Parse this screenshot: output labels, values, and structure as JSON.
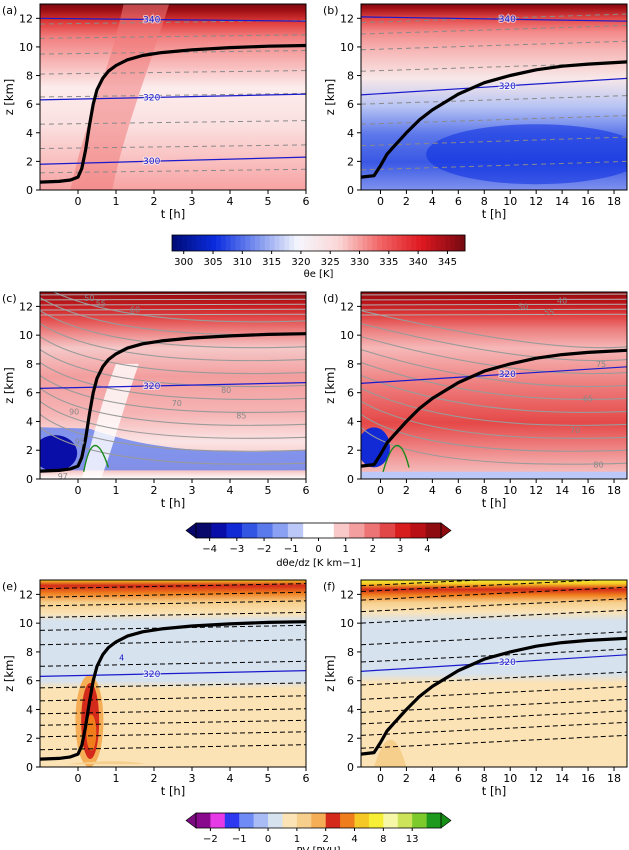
{
  "figure": {
    "rows": [
      {
        "colorbar": {
          "type": "continuous",
          "label": "θe [K]",
          "ticks": [
            300,
            305,
            310,
            315,
            320,
            325,
            330,
            335,
            340,
            345
          ],
          "range": [
            298,
            348
          ],
          "colors": [
            "#000c7a",
            "#0b2de0",
            "#7c92ee",
            "#f5f7fd",
            "#fbd6d6",
            "#f16565",
            "#df1820",
            "#7a0a12"
          ]
        }
      },
      {
        "colorbar": {
          "type": "discrete",
          "label": "dθe/dz [K km−1]",
          "ticks": [
            -4,
            -3,
            -2,
            -1,
            0,
            1,
            2,
            3,
            4
          ],
          "range": [
            -4.5,
            4.5
          ],
          "extend": "both",
          "bins": [
            "#08086b",
            "#0a0ea8",
            "#1229d6",
            "#3355e4",
            "#5a79eb",
            "#8aa0f2",
            "#bcc8f7",
            "#ffffff",
            "#ffffff",
            "#f9c9c9",
            "#f39f9f",
            "#ec7474",
            "#e24747",
            "#d81d1d",
            "#b91015",
            "#8e0b10"
          ]
        }
      },
      {
        "colorbar": {
          "type": "categorical",
          "label": "PV [PVU]",
          "ticks": [
            "−2",
            "−1",
            "0",
            "1",
            "2",
            "4",
            "8",
            "13"
          ],
          "extend": "both",
          "bins": [
            "#8a0a8e",
            "#e53ae5",
            "#2e38f0",
            "#6f8bf5",
            "#a9bcf5",
            "#d6e2ee",
            "#fbe3b6",
            "#f6cf8c",
            "#f5ae55",
            "#d42a1b",
            "#f07d1b",
            "#f5c825",
            "#f7ef36",
            "#f7f7a8",
            "#cde35a",
            "#7dca2d",
            "#1f9a1c"
          ],
          "extend_colors": [
            "#7b0a80",
            "#168f16"
          ]
        }
      }
    ],
    "panels": [
      {
        "label": "(a)",
        "row": 0,
        "col": 0,
        "field": "theta_e"
      },
      {
        "label": "(b)",
        "row": 0,
        "col": 1,
        "field": "theta_e"
      },
      {
        "label": "(c)",
        "row": 1,
        "col": 0,
        "field": "dthetae_dz"
      },
      {
        "label": "(d)",
        "row": 1,
        "col": 1,
        "field": "dthetae_dz"
      },
      {
        "label": "(e)",
        "row": 2,
        "col": 0,
        "field": "pv"
      },
      {
        "label": "(f)",
        "row": 2,
        "col": 1,
        "field": "pv"
      }
    ]
  },
  "chart_data": [
    {
      "type": "heatmap",
      "panel": "(a)",
      "xlabel": "t [h]",
      "ylabel": "z [km]",
      "xlim": [
        -1,
        6
      ],
      "ylim": [
        0,
        13
      ],
      "xticks": [
        0,
        1,
        2,
        3,
        4,
        5,
        6
      ],
      "yticks": [
        0,
        2,
        4,
        6,
        8,
        10,
        12
      ],
      "colorbar": "θe [K]",
      "trajectory": {
        "t": [
          -1,
          -0.5,
          -0.2,
          0,
          0.1,
          0.2,
          0.3,
          0.4,
          0.5,
          0.65,
          0.8,
          1,
          1.3,
          1.7,
          2.2,
          3,
          4,
          5,
          6
        ],
        "z": [
          0.55,
          0.6,
          0.7,
          0.9,
          1.5,
          2.8,
          4.5,
          6.0,
          7.0,
          7.8,
          8.3,
          8.7,
          9.1,
          9.4,
          9.6,
          9.8,
          9.95,
          10.05,
          10.1
        ]
      },
      "isentropes": [
        {
          "label": "300",
          "t": [
            -1,
            6
          ],
          "z": [
            1.8,
            2.3
          ]
        },
        {
          "label": "320",
          "t": [
            -1,
            6
          ],
          "z": [
            6.3,
            6.7
          ]
        },
        {
          "label": "340",
          "t": [
            -1,
            6
          ],
          "z": [
            12.0,
            11.8
          ]
        }
      ]
    },
    {
      "type": "heatmap",
      "panel": "(b)",
      "xlabel": "t [h]",
      "ylabel": "z [km]",
      "xlim": [
        -1.5,
        19
      ],
      "ylim": [
        0,
        13
      ],
      "xticks": [
        0,
        2,
        4,
        6,
        8,
        10,
        12,
        14,
        16,
        18
      ],
      "yticks": [
        0,
        2,
        4,
        6,
        8,
        10,
        12
      ],
      "colorbar": "θe [K]",
      "trajectory": {
        "t": [
          -1.5,
          -0.5,
          0,
          0.5,
          1,
          2,
          3,
          4,
          6,
          8,
          10,
          12,
          14,
          16,
          19
        ],
        "z": [
          0.9,
          1.0,
          1.7,
          2.5,
          3.0,
          4.0,
          4.9,
          5.6,
          6.7,
          7.5,
          8.0,
          8.4,
          8.65,
          8.8,
          8.95
        ]
      },
      "isentropes": [
        {
          "label": "320",
          "t": [
            -1.5,
            19
          ],
          "z": [
            6.65,
            7.8
          ]
        },
        {
          "label": "340",
          "t": [
            -1.5,
            19
          ],
          "z": [
            12.1,
            11.8
          ]
        }
      ]
    },
    {
      "type": "heatmap",
      "panel": "(c)",
      "xlabel": "t [h]",
      "ylabel": "z [km]",
      "xlim": [
        -1,
        6
      ],
      "ylim": [
        0,
        13
      ],
      "xticks": [
        0,
        1,
        2,
        3,
        4,
        5,
        6
      ],
      "yticks": [
        0,
        2,
        4,
        6,
        8,
        10,
        12
      ],
      "colorbar": "dθe/dz [K km−1]",
      "trajectory": {
        "t": [
          -1,
          -0.5,
          -0.2,
          0,
          0.1,
          0.2,
          0.3,
          0.4,
          0.5,
          0.65,
          0.8,
          1,
          1.3,
          1.7,
          2.2,
          3,
          4,
          5,
          6
        ],
        "z": [
          0.55,
          0.6,
          0.7,
          0.9,
          1.5,
          2.8,
          4.5,
          6.0,
          7.0,
          7.8,
          8.3,
          8.7,
          9.1,
          9.4,
          9.6,
          9.8,
          9.95,
          10.05,
          10.1
        ]
      },
      "isentropes": [
        {
          "label": "320",
          "t": [
            -1,
            6
          ],
          "z": [
            6.3,
            6.7
          ]
        }
      ],
      "contour_labels": [
        "50",
        "55",
        "60",
        "70",
        "80",
        "85",
        "90",
        "95",
        "97"
      ]
    },
    {
      "type": "heatmap",
      "panel": "(d)",
      "xlabel": "t [h]",
      "ylabel": "z [km]",
      "xlim": [
        -1.5,
        19
      ],
      "ylim": [
        0,
        13
      ],
      "xticks": [
        0,
        2,
        4,
        6,
        8,
        10,
        12,
        14,
        16,
        18
      ],
      "yticks": [
        0,
        2,
        4,
        6,
        8,
        10,
        12
      ],
      "colorbar": "dθe/dz [K km−1]",
      "trajectory": {
        "t": [
          -1.5,
          -0.5,
          0,
          0.5,
          1,
          2,
          3,
          4,
          6,
          8,
          10,
          12,
          14,
          16,
          19
        ],
        "z": [
          0.9,
          1.0,
          1.7,
          2.5,
          3.0,
          4.0,
          4.9,
          5.6,
          6.7,
          7.5,
          8.0,
          8.4,
          8.65,
          8.8,
          8.95
        ]
      },
      "isentropes": [
        {
          "label": "320",
          "t": [
            -1.5,
            19
          ],
          "z": [
            6.65,
            7.8
          ]
        }
      ],
      "contour_labels": [
        "40",
        "50",
        "55",
        "65",
        "70",
        "75",
        "80"
      ]
    },
    {
      "type": "heatmap",
      "panel": "(e)",
      "xlabel": "t [h]",
      "ylabel": "z [km]",
      "xlim": [
        -1,
        6
      ],
      "ylim": [
        0,
        13
      ],
      "xticks": [
        0,
        1,
        2,
        3,
        4,
        5,
        6
      ],
      "yticks": [
        0,
        2,
        4,
        6,
        8,
        10,
        12
      ],
      "colorbar": "PV [PVU]",
      "trajectory": {
        "t": [
          -1,
          -0.5,
          -0.2,
          0,
          0.1,
          0.2,
          0.3,
          0.4,
          0.5,
          0.65,
          0.8,
          1,
          1.3,
          1.7,
          2.2,
          3,
          4,
          5,
          6
        ],
        "z": [
          0.55,
          0.6,
          0.7,
          0.9,
          1.5,
          2.8,
          4.5,
          6.0,
          7.0,
          7.8,
          8.3,
          8.7,
          9.1,
          9.4,
          9.6,
          9.8,
          9.95,
          10.05,
          10.1
        ]
      },
      "isentropes": [
        {
          "label": "320",
          "t": [
            -1,
            6
          ],
          "z": [
            6.3,
            6.7
          ]
        }
      ],
      "contour_labels": [
        "4"
      ]
    },
    {
      "type": "heatmap",
      "panel": "(f)",
      "xlabel": "t [h]",
      "ylabel": "z [km]",
      "xlim": [
        -1.5,
        19
      ],
      "ylim": [
        0,
        13
      ],
      "xticks": [
        0,
        2,
        4,
        6,
        8,
        10,
        12,
        14,
        16,
        18
      ],
      "yticks": [
        0,
        2,
        4,
        6,
        8,
        10,
        12
      ],
      "colorbar": "PV [PVU]",
      "trajectory": {
        "t": [
          -1.5,
          -0.5,
          0,
          0.5,
          1,
          2,
          3,
          4,
          6,
          8,
          10,
          12,
          14,
          16,
          19
        ],
        "z": [
          0.9,
          1.0,
          1.7,
          2.5,
          3.0,
          4.0,
          4.9,
          5.6,
          6.7,
          7.5,
          8.0,
          8.4,
          8.65,
          8.8,
          8.95
        ]
      },
      "isentropes": [
        {
          "label": "320",
          "t": [
            -1.5,
            19
          ],
          "z": [
            6.65,
            7.8
          ]
        }
      ]
    }
  ]
}
